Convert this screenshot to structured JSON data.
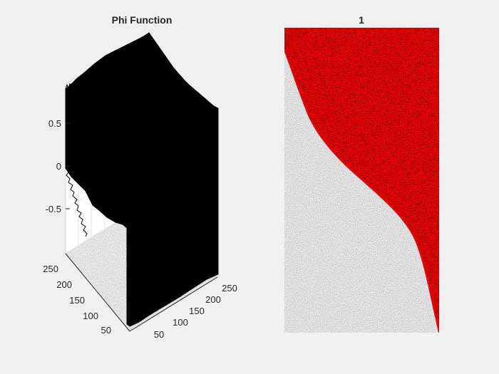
{
  "figure": {
    "background": "#f0f0f0"
  },
  "chart_data": [
    {
      "type": "surface",
      "title": "Phi Function",
      "xlabel": "",
      "ylabel": "",
      "zlabel": "",
      "x_ticks": [
        "50",
        "100",
        "150",
        "200",
        "250"
      ],
      "y_ticks": [
        "50",
        "100",
        "150",
        "200",
        "250"
      ],
      "z_ticks": [
        "0.5",
        "0",
        "-0.5"
      ],
      "x_range": [
        1,
        256
      ],
      "y_range": [
        1,
        256
      ],
      "z_range": [
        -1,
        1
      ],
      "grid": true,
      "surface_color": "#000000",
      "floor_color": "#bdbdbd",
      "description_values": {
        "high_level": 0.9,
        "low_level": -0.9
      }
    },
    {
      "type": "heatmap",
      "title": "1",
      "contour_color": "#ff0000",
      "background_texture": "gray noise image",
      "region_inside": "red",
      "region_outside": "gray"
    }
  ]
}
